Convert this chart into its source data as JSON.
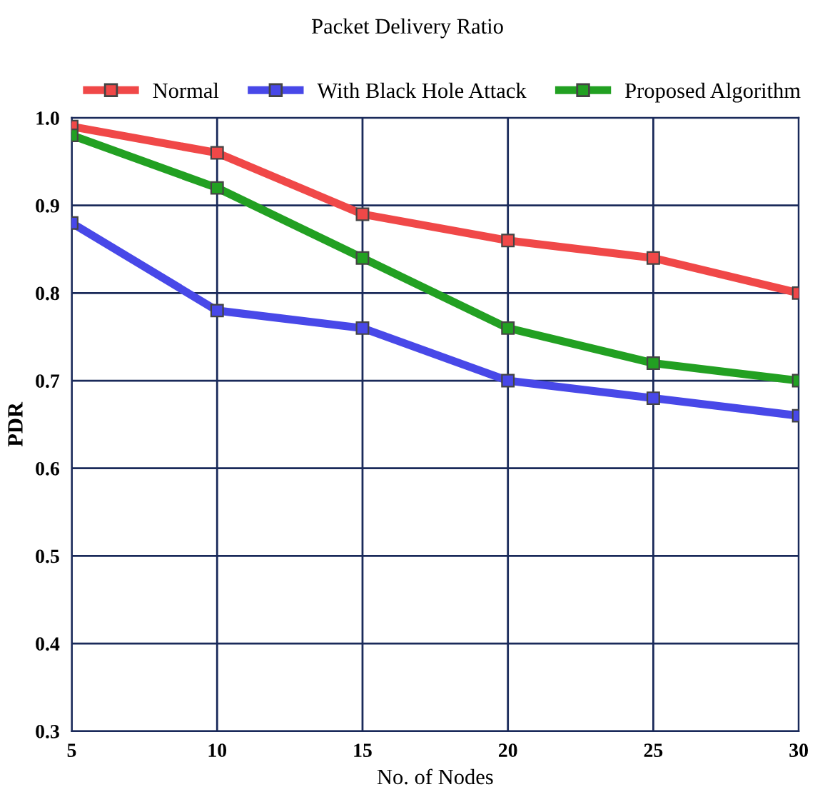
{
  "chart_data": {
    "type": "line",
    "title": "Packet Delivery Ratio",
    "xlabel": "No. of Nodes",
    "ylabel": "PDR",
    "x": [
      5,
      10,
      15,
      20,
      25,
      30
    ],
    "series": [
      {
        "name": "Normal",
        "color": "#f04848",
        "values": [
          0.99,
          0.96,
          0.89,
          0.86,
          0.84,
          0.8
        ]
      },
      {
        "name": "With Black Hole Attack",
        "color": "#4848e8",
        "values": [
          0.88,
          0.78,
          0.76,
          0.7,
          0.68,
          0.66
        ]
      },
      {
        "name": "Proposed Algorithm",
        "color": "#22a022",
        "values": [
          0.98,
          0.92,
          0.84,
          0.76,
          0.72,
          0.7
        ]
      }
    ],
    "xlim": [
      5,
      30
    ],
    "xticks": [
      5,
      10,
      15,
      20,
      25,
      30
    ],
    "ylim": [
      0.3,
      1.0
    ],
    "yticks": [
      {
        "value": 0.3,
        "label": "0.3"
      },
      {
        "value": 0.4,
        "label": "0.4"
      },
      {
        "value": 0.5,
        "label": "0.5"
      },
      {
        "value": 0.6,
        "label": "0.6"
      },
      {
        "value": 0.7,
        "label": "0.7"
      },
      {
        "value": 0.8,
        "label": "0.8"
      },
      {
        "value": 0.9,
        "label": "0.9"
      },
      {
        "value": 1.0,
        "label": "1.0"
      }
    ],
    "grid": true,
    "legend": "top",
    "marker": "square",
    "line_style": "solid"
  }
}
